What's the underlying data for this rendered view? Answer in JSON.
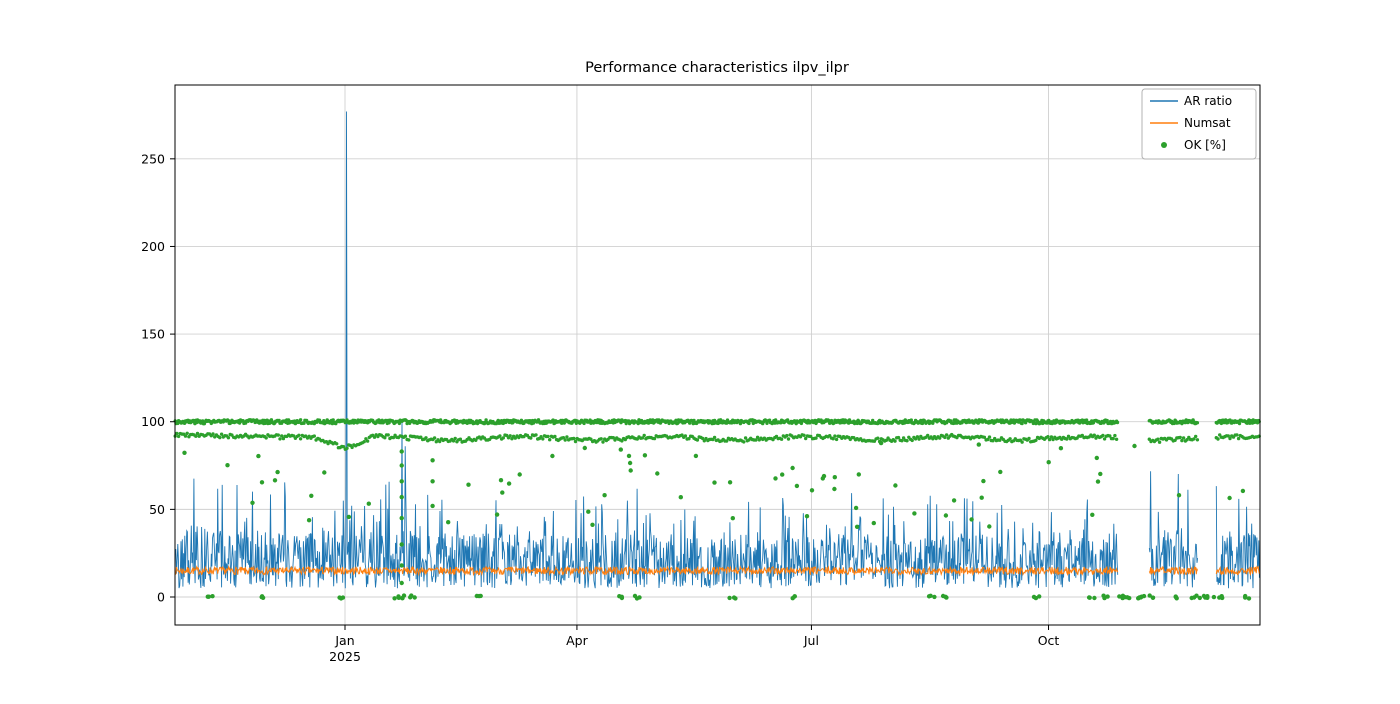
{
  "chart_data": {
    "type": "line",
    "title": "Performance characteristics ilpv_ilpr",
    "x_axis": {
      "tick_labels": [
        "Jan",
        "Apr",
        "Jul",
        "Oct"
      ],
      "tick_days": [
        0,
        90,
        181,
        273
      ],
      "year_label": "2025",
      "range_days": [
        -65.9,
        355.0
      ]
    },
    "y_axis": {
      "ticks": [
        0,
        50,
        100,
        150,
        200,
        250
      ],
      "range": [
        -16,
        292
      ]
    },
    "grid": true,
    "legend": {
      "position": "upper right",
      "items": [
        {
          "label": "AR ratio",
          "color": "#1f77b4",
          "marker": "line"
        },
        {
          "label": "Numsat",
          "color": "#ff7f0e",
          "marker": "line"
        },
        {
          "label": "OK [%]",
          "color": "#2ca02c",
          "marker": "dot"
        }
      ]
    },
    "gaps_days": [
      [
        300,
        312
      ],
      [
        331,
        338
      ]
    ],
    "series": {
      "ar_ratio": {
        "name": "AR ratio",
        "color": "#1f77b4",
        "baseline_min": 5,
        "samples_per_day": 4,
        "seed": 42,
        "envelope_max": [
          [
            -66,
            70
          ],
          [
            -55,
            76
          ],
          [
            -40,
            65
          ],
          [
            -25,
            68
          ],
          [
            -10,
            60
          ],
          [
            0,
            62
          ],
          [
            15,
            66
          ],
          [
            25,
            68
          ],
          [
            40,
            60
          ],
          [
            60,
            62
          ],
          [
            80,
            55
          ],
          [
            100,
            60
          ],
          [
            115,
            68
          ],
          [
            130,
            55
          ],
          [
            150,
            52
          ],
          [
            165,
            58
          ],
          [
            181,
            60
          ],
          [
            200,
            62
          ],
          [
            215,
            55
          ],
          [
            230,
            60
          ],
          [
            245,
            62
          ],
          [
            260,
            50
          ],
          [
            273,
            48
          ],
          [
            285,
            55
          ],
          [
            295,
            60
          ],
          [
            315,
            75
          ],
          [
            325,
            72
          ],
          [
            340,
            65
          ],
          [
            355,
            70
          ]
        ],
        "spikes": [
          {
            "day": 0.4,
            "value": 277
          },
          {
            "day": 22.0,
            "value": 100
          },
          {
            "day": 23.2,
            "value": 86
          }
        ]
      },
      "numsat": {
        "name": "Numsat",
        "color": "#ff7f0e",
        "mean": 15,
        "half_band": 2.2,
        "samples_per_day": 4,
        "seed": 7
      },
      "ok_pct": {
        "name": "OK [%]",
        "color": "#2ca02c",
        "band_100": {
          "value": 100,
          "jitter": 1.1,
          "samples_per_day": 3,
          "seed": 3
        },
        "band_low": {
          "left_value": 92.5,
          "pre_dip_value": 91,
          "dip_day": 0,
          "dip_value": 85,
          "dip_half_width": 12,
          "post_value": 90.5,
          "wiggle_amp": 1.0,
          "wiggle_period": 55,
          "jitter": 1.2,
          "samples_per_day": 1.5,
          "seed": 9
        },
        "scatter": {
          "count": 70,
          "value_range": [
            40,
            88
          ],
          "seed": 11
        },
        "columns": [
          {
            "day": 22,
            "values": [
              8,
              18,
              30,
              45,
              57,
              66,
              75,
              83
            ]
          },
          {
            "day": 34,
            "values": [
              52,
              66,
              78
            ]
          }
        ],
        "zeros": {
          "cluster_days": [
            -52,
            -33,
            -2,
            20,
            23,
            26,
            52,
            107,
            113,
            150,
            175,
            228,
            232,
            268,
            290,
            295,
            301,
            304,
            307,
            310,
            313,
            322,
            330,
            333,
            336,
            339,
            350
          ],
          "jitter_days": 1.5,
          "per_cluster": 3,
          "seed": 5
        }
      }
    },
    "colors": {
      "grid": "#d0d0d0",
      "axis": "#000000",
      "background": "#ffffff"
    }
  }
}
